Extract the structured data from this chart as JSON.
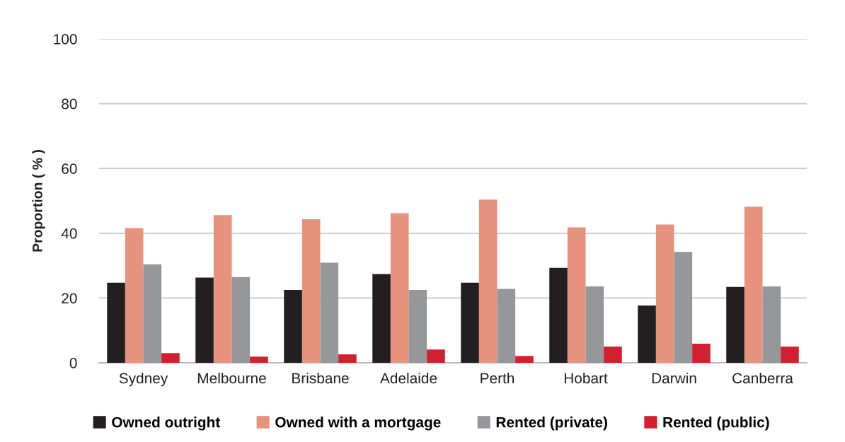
{
  "chart_data": {
    "type": "bar",
    "ylabel": "Proportion ( % )",
    "categories": [
      "Sydney",
      "Melbourne",
      "Brisbane",
      "Adelaide",
      "Perth",
      "Hobart",
      "Darwin",
      "Canberra"
    ],
    "series": [
      {
        "name": "Owned outright",
        "color": "#231f20",
        "values": [
          24.7,
          26.3,
          22.5,
          27.4,
          24.7,
          29.3,
          17.7,
          23.4
        ]
      },
      {
        "name": "Owned with a mortgage",
        "color": "#e6927d",
        "values": [
          41.6,
          45.6,
          44.3,
          46.2,
          50.4,
          41.8,
          42.7,
          48.2
        ]
      },
      {
        "name": "Rented (private)",
        "color": "#96979b",
        "values": [
          30.4,
          26.5,
          30.9,
          22.5,
          22.8,
          23.6,
          34.2,
          23.6
        ]
      },
      {
        "name": "Rented (public)",
        "color": "#d12030",
        "values": [
          3.0,
          1.9,
          2.6,
          4.1,
          2.1,
          5.0,
          5.9,
          5.0
        ]
      }
    ],
    "ylim": [
      0,
      100
    ],
    "yticks": [
      0,
      20,
      40,
      60,
      80,
      100
    ],
    "grid": "y",
    "legend": "bottom"
  }
}
